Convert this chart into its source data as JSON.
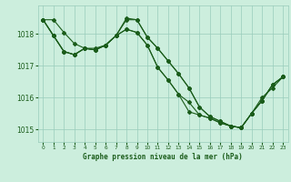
{
  "title": "Graphe pression niveau de la mer (hPa)",
  "bg_color": "#cceedd",
  "grid_color": "#99ccbb",
  "line_color": "#1a5c1a",
  "marker_color": "#1a5c1a",
  "ylim": [
    1014.6,
    1018.9
  ],
  "xlim": [
    -0.5,
    23.5
  ],
  "yticks": [
    1015,
    1016,
    1017,
    1018
  ],
  "xticks": [
    0,
    1,
    2,
    3,
    4,
    5,
    6,
    7,
    8,
    9,
    10,
    11,
    12,
    13,
    14,
    15,
    16,
    17,
    18,
    19,
    20,
    21,
    22,
    23
  ],
  "series": [
    [
      1018.45,
      1018.45,
      1018.05,
      1017.7,
      1017.55,
      1017.55,
      1017.65,
      1017.95,
      1018.5,
      1018.45,
      1017.9,
      1017.55,
      1017.15,
      1016.75,
      1016.3,
      1015.7,
      1015.4,
      1015.25,
      1015.1,
      1015.05,
      1015.5,
      1015.9,
      1016.4,
      1016.65
    ],
    [
      1018.45,
      1017.95,
      1017.45,
      1017.35,
      1017.55,
      1017.5,
      1017.65,
      1017.95,
      1018.45,
      1018.45,
      1017.9,
      1017.55,
      1017.15,
      1016.75,
      1016.3,
      1015.7,
      1015.4,
      1015.25,
      1015.1,
      1015.05,
      1015.5,
      1015.9,
      1016.4,
      1016.65
    ],
    [
      1018.45,
      1017.95,
      1017.45,
      1017.35,
      1017.55,
      1017.5,
      1017.65,
      1017.95,
      1018.15,
      1018.05,
      1017.65,
      1016.95,
      1016.55,
      1016.1,
      1015.85,
      1015.45,
      1015.35,
      1015.2,
      1015.1,
      1015.05,
      1015.5,
      1015.9,
      1016.4,
      1016.65
    ],
    [
      1018.45,
      1017.95,
      1017.45,
      1017.35,
      1017.55,
      1017.5,
      1017.65,
      1017.95,
      1018.15,
      1018.05,
      1017.65,
      1016.95,
      1016.55,
      1016.1,
      1015.55,
      1015.45,
      1015.35,
      1015.2,
      1015.1,
      1015.05,
      1015.5,
      1016.0,
      1016.3,
      1016.65
    ]
  ]
}
